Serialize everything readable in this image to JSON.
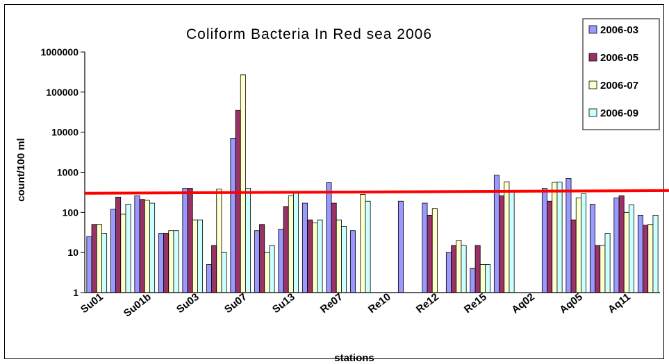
{
  "chart_data": {
    "type": "bar",
    "title": "Coliform Bacteria In Red sea 2006",
    "xlabel": "stations",
    "ylabel": "count/100 ml",
    "yscale": "log",
    "ylim": [
      1,
      1000000
    ],
    "yticks": [
      "1",
      "10",
      "100",
      "1000",
      "10000",
      "100000",
      "1000000"
    ],
    "grid": false,
    "legend_position": "top-right",
    "x_tick_labels": [
      "Su01",
      "Su01b",
      "Su03",
      "Su07",
      "Su13",
      "Re07",
      "Re10",
      "Re12",
      "Re15",
      "Aq02",
      "Aq05",
      "Aq11"
    ],
    "categories": [
      "Su01",
      "",
      "Su01b",
      "",
      "Su03",
      "",
      "Su07",
      "",
      "Su13",
      "",
      "Re07",
      "",
      "Re10",
      "",
      "Re12",
      "",
      "Re15",
      "",
      "Aq02",
      "",
      "Aq05",
      "",
      "Aq11",
      ""
    ],
    "series": [
      {
        "name": "2006-03",
        "color": "#9999ff",
        "values": [
          25,
          120,
          260,
          30,
          400,
          5,
          7000,
          35,
          38,
          170,
          550,
          35,
          null,
          190,
          170,
          10,
          4,
          850,
          null,
          400,
          700,
          160,
          230,
          85
        ]
      },
      {
        "name": "2006-05",
        "color": "#993366",
        "values": [
          50,
          240,
          210,
          30,
          400,
          15,
          35000,
          50,
          140,
          65,
          170,
          null,
          null,
          null,
          85,
          15,
          15,
          260,
          null,
          190,
          65,
          15,
          260,
          48
        ]
      },
      {
        "name": "2006-07",
        "color": "#ffffcc",
        "values": [
          50,
          90,
          200,
          35,
          65,
          380,
          270000,
          10,
          260,
          55,
          65,
          280,
          null,
          null,
          125,
          20,
          5,
          580,
          null,
          560,
          230,
          15,
          100,
          50
        ]
      },
      {
        "name": "2006-09",
        "color": "#ccffff",
        "values": [
          30,
          160,
          170,
          35,
          65,
          10,
          400,
          15,
          300,
          65,
          45,
          190,
          null,
          null,
          null,
          15,
          5,
          350,
          null,
          570,
          290,
          30,
          155,
          85
        ]
      }
    ],
    "reference_line": {
      "color": "#ff0000",
      "values_at_start_end": [
        300,
        350
      ]
    }
  }
}
